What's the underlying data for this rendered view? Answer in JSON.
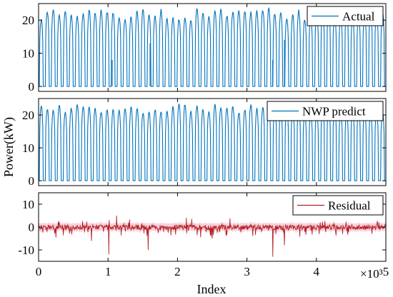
{
  "chart_data": [
    {
      "type": "line",
      "legend": "Actual",
      "legend_position": "top-right",
      "ylim": [
        -1.5,
        25
      ],
      "yticks": [
        0,
        10,
        20
      ],
      "ytick_labels": [
        "0",
        "10",
        "20"
      ],
      "xlim": [
        0,
        5000
      ],
      "grid": false,
      "color": "#0072BD",
      "pattern": {
        "cycles": 58,
        "peak_range_kw": [
          20.5,
          24.0
        ],
        "baseline_kw": 0,
        "dips": [
          {
            "x": 1060,
            "y": 8
          },
          {
            "x": 3370,
            "y": 8
          },
          {
            "x": 1605,
            "y": 13
          },
          {
            "x": 3540,
            "y": 14
          }
        ]
      }
    },
    {
      "type": "line",
      "legend": "NWP predict",
      "legend_position": "top-right",
      "ylim": [
        -1.5,
        25
      ],
      "yticks": [
        0,
        10,
        20
      ],
      "ytick_labels": [
        "0",
        "10",
        "20"
      ],
      "xlim": [
        0,
        5000
      ],
      "grid": false,
      "color": "#0072BD",
      "pattern": {
        "cycles": 58,
        "peak_range_kw": [
          21.0,
          23.8
        ],
        "baseline_kw": 0
      }
    },
    {
      "type": "line",
      "legend": "Residual",
      "legend_position": "top-right",
      "ylim": [
        -15,
        15
      ],
      "yticks": [
        -10,
        0,
        10
      ],
      "ytick_labels": [
        "-10",
        "0",
        "10"
      ],
      "xlim": [
        0,
        5000
      ],
      "grid": false,
      "color": "#B22222",
      "band_color": "#F7C6D6",
      "spikes": [
        {
          "x": 1010,
          "y": -12
        },
        {
          "x": 1120,
          "y": 5
        },
        {
          "x": 1580,
          "y": -10
        },
        {
          "x": 3370,
          "y": -13
        },
        {
          "x": 3540,
          "y": -8
        },
        {
          "x": 2130,
          "y": 4
        },
        {
          "x": 4900,
          "y": 2
        },
        {
          "x": 760,
          "y": -6
        },
        {
          "x": 2500,
          "y": -5
        }
      ]
    }
  ],
  "ylabel": "Power(kW)",
  "xlabel": "Index",
  "xticks": [
    0,
    1000,
    2000,
    3000,
    4000,
    5000
  ],
  "xtick_labels": [
    "0",
    "1",
    "2",
    "3",
    "4",
    "5"
  ],
  "x_multiplier_label": "×10³"
}
